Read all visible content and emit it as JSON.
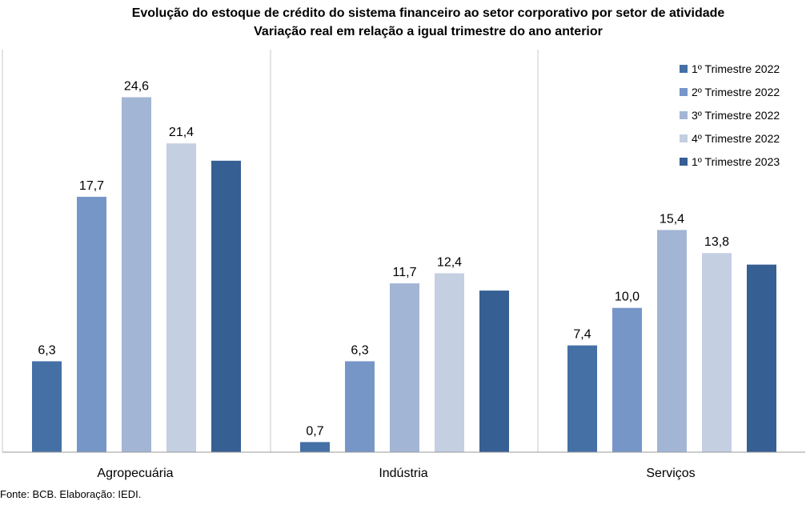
{
  "title": "Evolução do estoque de crédito do sistema financeiro ao setor corporativo por setor de atividade",
  "subtitle": "Variação real em relação a  igual trimestre do ano anterior",
  "source": "Fonte: BCB. Elaboração: IEDI.",
  "chart_data": {
    "type": "bar",
    "categories": [
      "Agropecuária",
      "Indústria",
      "Serviços"
    ],
    "series": [
      {
        "name": "1º Trimestre 2022",
        "color": "#4470a5",
        "values": [
          6.3,
          0.7,
          7.4
        ],
        "show_label": true
      },
      {
        "name": "2º Trimestre 2022",
        "color": "#7696c8",
        "values": [
          17.7,
          6.3,
          10.0
        ],
        "show_label": true
      },
      {
        "name": "3º Trimestre 2022",
        "color": "#a3b5d5",
        "values": [
          24.6,
          11.7,
          15.4
        ],
        "show_label": true
      },
      {
        "name": "4º Trimestre 2022",
        "color": "#c4cfe2",
        "values": [
          21.4,
          12.4,
          13.8
        ],
        "show_label": true
      },
      {
        "name": "1º Trimestre 2023",
        "color": "#365f93",
        "values": [
          20.2,
          11.2,
          13.0
        ],
        "show_label": false
      }
    ],
    "ylim": [
      0,
      27.9
    ],
    "decimal_separator": ",",
    "legend_position": "top-right",
    "category_separators": true
  }
}
